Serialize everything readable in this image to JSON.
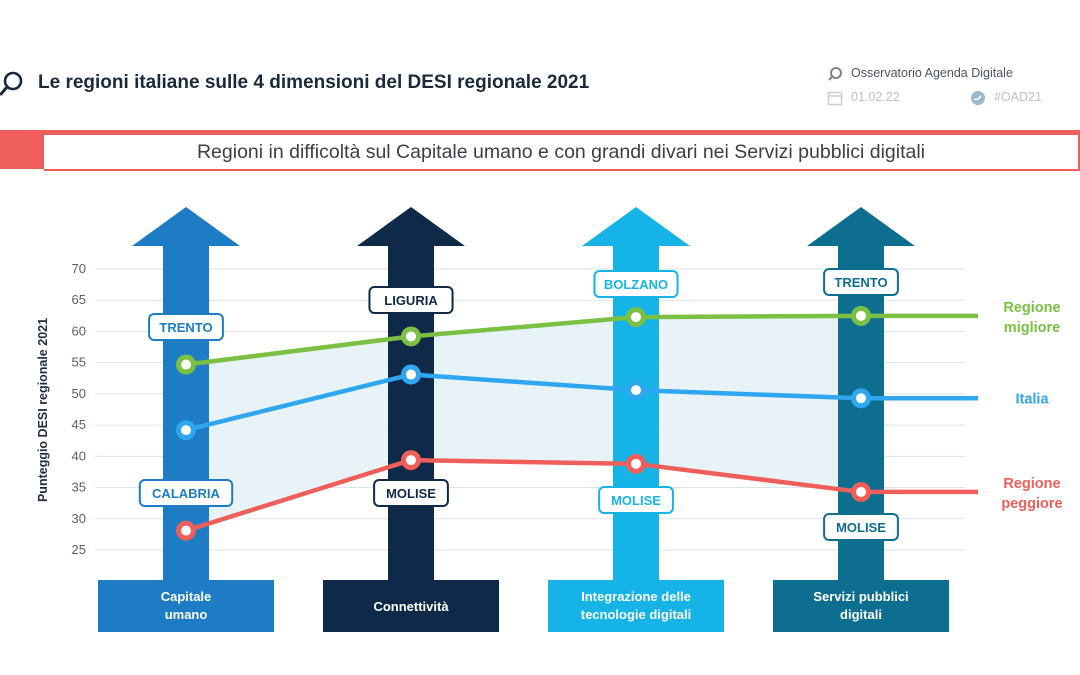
{
  "header": {
    "title": "Le regioni italiane sulle 4 dimensioni del DESI regionale 2021",
    "source": "Osservatorio Agenda Digitale",
    "date": "01.02.22",
    "hashtag": "#OAD21"
  },
  "banner": {
    "text": "Regioni in difficoltà sul Capitale umano e con grandi divari nei Servizi pubblici digitali",
    "color": "#ee5f5b"
  },
  "chart_data": {
    "type": "line",
    "ylabel": "Punteggio DESI regionale 2021",
    "ylim": [
      25,
      70
    ],
    "yticks": [
      70,
      65,
      60,
      55,
      50,
      45,
      40,
      35,
      30,
      25
    ],
    "grid": true,
    "categories": [
      {
        "lines": [
          "Capitale",
          "umano"
        ],
        "color": "#1d7cc3"
      },
      {
        "lines": [
          "Connettività"
        ],
        "color": "#0f2948"
      },
      {
        "lines": [
          "Integrazione delle",
          "tecnologie digitali"
        ],
        "color": "#16b3e6"
      },
      {
        "lines": [
          "Servizi pubblici",
          "digitali"
        ],
        "color": "#0e6e90"
      }
    ],
    "series": [
      {
        "name": "Regione migliore",
        "legend": [
          "Regione",
          "migliore"
        ],
        "color": "#7bc043",
        "values": [
          54.7,
          59.2,
          62.3,
          62.5
        ],
        "regions": [
          "TRENTO",
          "LIGURIA",
          "BOLZANO",
          "TRENTO"
        ]
      },
      {
        "name": "Italia",
        "legend": [
          "Italia"
        ],
        "color": "#2ea6f0",
        "values": [
          44.2,
          53.1,
          50.6,
          49.3
        ],
        "regions": []
      },
      {
        "name": "Regione peggiore",
        "legend": [
          "Regione",
          "peggiore"
        ],
        "color": "#ee5f5b",
        "values": [
          28.1,
          39.4,
          38.8,
          34.3
        ],
        "regions": [
          "CALABRIA",
          "MOLISE",
          "MOLISE",
          "MOLISE"
        ]
      }
    ]
  }
}
